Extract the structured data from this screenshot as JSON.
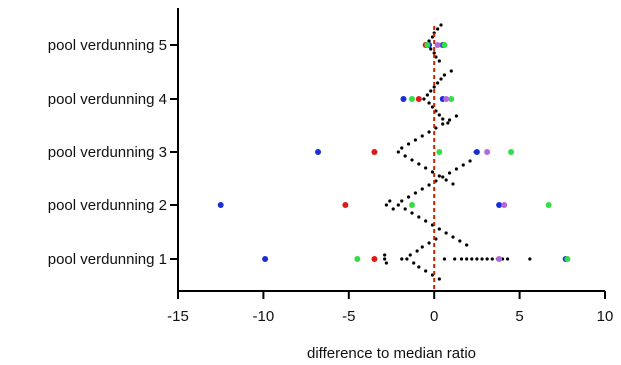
{
  "chart_data": {
    "type": "scatter",
    "title": "",
    "xlabel": "difference to median ratio",
    "ylabel": "",
    "xlim": [
      -15,
      10
    ],
    "xticks": [
      -15,
      -10,
      -5,
      0,
      5,
      10
    ],
    "x_tick_labels": [
      "-15",
      "-10",
      "-5",
      "0",
      "5",
      "10"
    ],
    "categories": [
      "pool verdunning 1",
      "pool verdunning 2",
      "pool verdunning 3",
      "pool verdunning 4",
      "pool verdunning 5"
    ],
    "grid": false,
    "legend": "none",
    "reference_line": {
      "x": 0,
      "color": "#cc2200",
      "style": "dashed"
    },
    "series": [
      {
        "color": "#000000",
        "points": [
          {
            "category": "pool verdunning 1",
            "values": [
              -2.9,
              -2.9,
              -2.8,
              -1.9,
              -1.6,
              -1.4,
              -1.2,
              -1.0,
              -0.9,
              -0.7,
              -0.5,
              -0.3,
              -0.1,
              0.1,
              0.3,
              0.6,
              1.2,
              1.6,
              1.9,
              2.2,
              2.5,
              2.8,
              3.1,
              3.4,
              3.7,
              4.0,
              4.3,
              5.6
            ]
          },
          {
            "category": "pool verdunning 2",
            "values": [
              -2.8,
              -2.6,
              -2.4,
              -2.1,
              -1.9,
              -1.7,
              -1.5,
              -1.3,
              -1.1,
              -0.9,
              -0.7,
              -0.5,
              -0.3,
              -0.1,
              0.1,
              0.3,
              0.5,
              0.7,
              0.9,
              1.1,
              1.3,
              1.5,
              1.7,
              1.9,
              2.1,
              3.9
            ]
          },
          {
            "category": "pool verdunning 3",
            "values": [
              -2.1,
              -1.9,
              -1.7,
              -1.5,
              -1.3,
              -1.1,
              -0.9,
              -0.7,
              -0.5,
              -0.3,
              -0.1,
              0.1,
              0.3,
              0.5,
              0.7,
              0.9,
              1.1,
              1.3,
              2.4
            ]
          },
          {
            "category": "pool verdunning 4",
            "values": [
              -0.6,
              -0.4,
              -0.3,
              -0.2,
              -0.1,
              0.0,
              0.1,
              0.2,
              0.3,
              0.4,
              0.5,
              0.6,
              0.8,
              1.0
            ]
          },
          {
            "category": "pool verdunning 5",
            "values": [
              -0.4,
              -0.3,
              -0.2,
              -0.1,
              0.0,
              0.0,
              0.1,
              0.2,
              0.3,
              0.4
            ]
          }
        ]
      },
      {
        "color": "#1a2ed6",
        "points": [
          {
            "category": "pool verdunning 1",
            "values": [
              -9.9,
              7.7
            ]
          },
          {
            "category": "pool verdunning 2",
            "values": [
              -12.5,
              3.8
            ]
          },
          {
            "category": "pool verdunning 3",
            "values": [
              -6.8,
              2.5
            ]
          },
          {
            "category": "pool verdunning 4",
            "values": [
              -1.8,
              0.5
            ]
          },
          {
            "category": "pool verdunning 5",
            "values": [
              -0.3,
              0.5
            ]
          }
        ]
      },
      {
        "color": "#e01818",
        "points": [
          {
            "category": "pool verdunning 1",
            "values": [
              -3.5
            ]
          },
          {
            "category": "pool verdunning 2",
            "values": [
              -5.2
            ]
          },
          {
            "category": "pool verdunning 3",
            "values": [
              -3.5
            ]
          },
          {
            "category": "pool verdunning 4",
            "values": [
              -0.9
            ]
          },
          {
            "category": "pool verdunning 5",
            "values": [
              -0.5
            ]
          }
        ]
      },
      {
        "color": "#33dd44",
        "points": [
          {
            "category": "pool verdunning 1",
            "values": [
              -4.5,
              7.8
            ]
          },
          {
            "category": "pool verdunning 2",
            "values": [
              -1.3,
              6.7
            ]
          },
          {
            "category": "pool verdunning 3",
            "values": [
              0.3,
              4.5
            ]
          },
          {
            "category": "pool verdunning 4",
            "values": [
              -1.3,
              1.0
            ]
          },
          {
            "category": "pool verdunning 5",
            "values": [
              -0.4,
              0.6
            ]
          }
        ]
      },
      {
        "color": "#b36ad8",
        "points": [
          {
            "category": "pool verdunning 1",
            "values": [
              3.8
            ]
          },
          {
            "category": "pool verdunning 2",
            "values": [
              4.1
            ]
          },
          {
            "category": "pool verdunning 3",
            "values": [
              3.1
            ]
          },
          {
            "category": "pool verdunning 4",
            "values": [
              0.7
            ]
          },
          {
            "category": "pool verdunning 5",
            "values": [
              0.2
            ]
          }
        ]
      }
    ]
  }
}
